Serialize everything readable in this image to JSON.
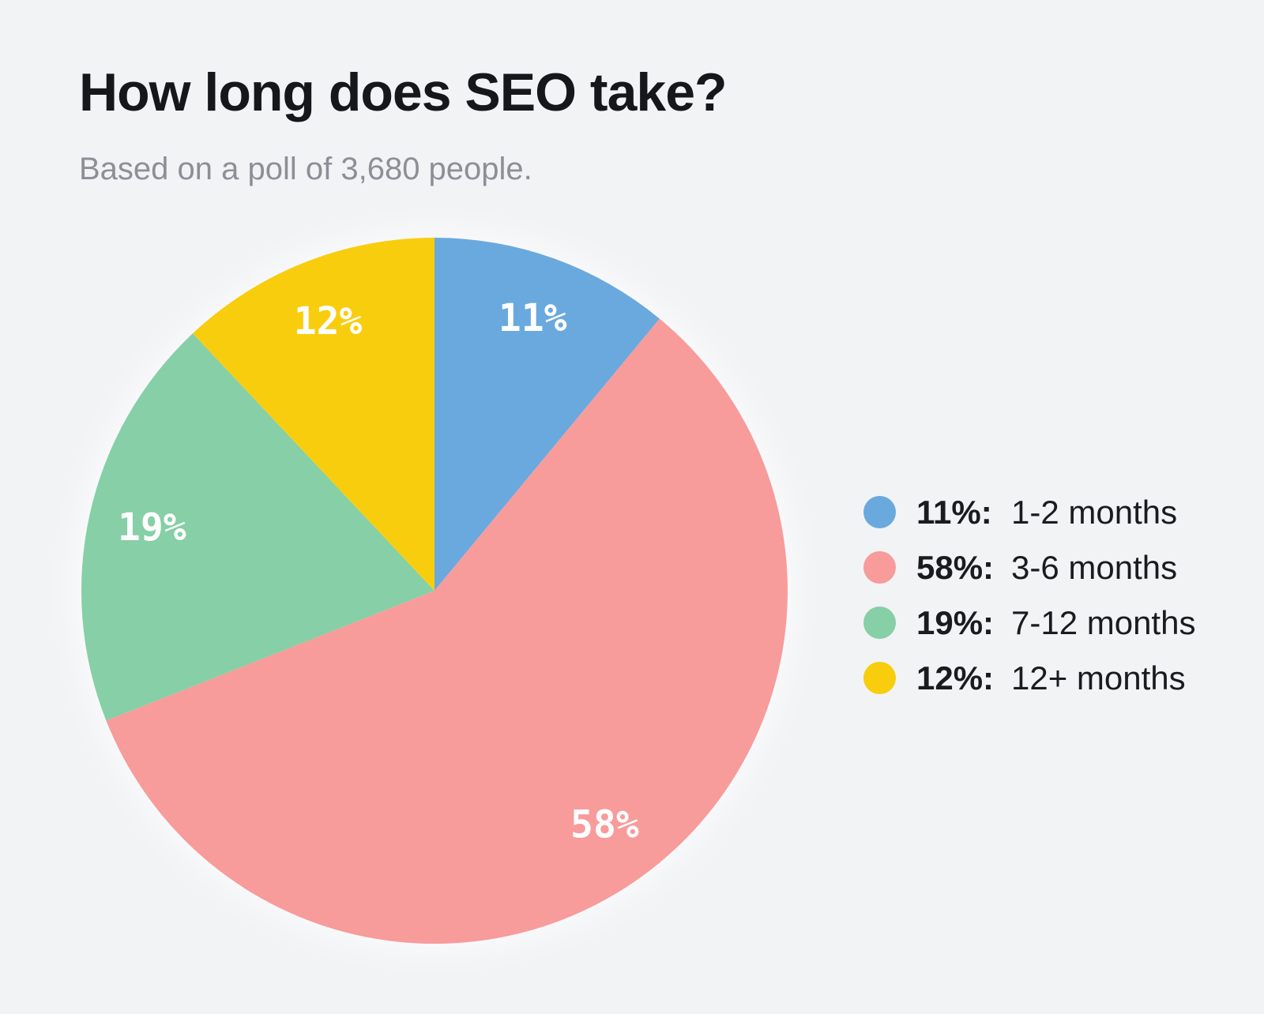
{
  "page": {
    "background_color": "#F2F3F5",
    "title_color": "#15171A",
    "subtitle_color": "#8B8F96",
    "legend_text_color": "#191B1E"
  },
  "chart_data": {
    "type": "pie",
    "title": "How long does SEO take?",
    "subtitle": "Based on a poll of 3,680 people.",
    "poll_size": "3,680",
    "start_angle_deg": 0,
    "direction": "clockwise",
    "legend_position": "right",
    "slice_label_color": "#FFFFFF",
    "slices": [
      {
        "label": "1-2 months",
        "value_pct": 11,
        "color": "#6AA9DE",
        "slice_label": "11%",
        "legend_pct_label": "11%:"
      },
      {
        "label": "3-6 months",
        "value_pct": 58,
        "color": "#F89B9B",
        "slice_label": "58%",
        "legend_pct_label": "58%:"
      },
      {
        "label": "7-12 months",
        "value_pct": 19,
        "color": "#87CFA6",
        "slice_label": "19%",
        "legend_pct_label": "19%:"
      },
      {
        "label": "12+ months",
        "value_pct": 12,
        "color": "#F8CD0E",
        "slice_label": "12%",
        "legend_pct_label": "12%:"
      }
    ]
  }
}
